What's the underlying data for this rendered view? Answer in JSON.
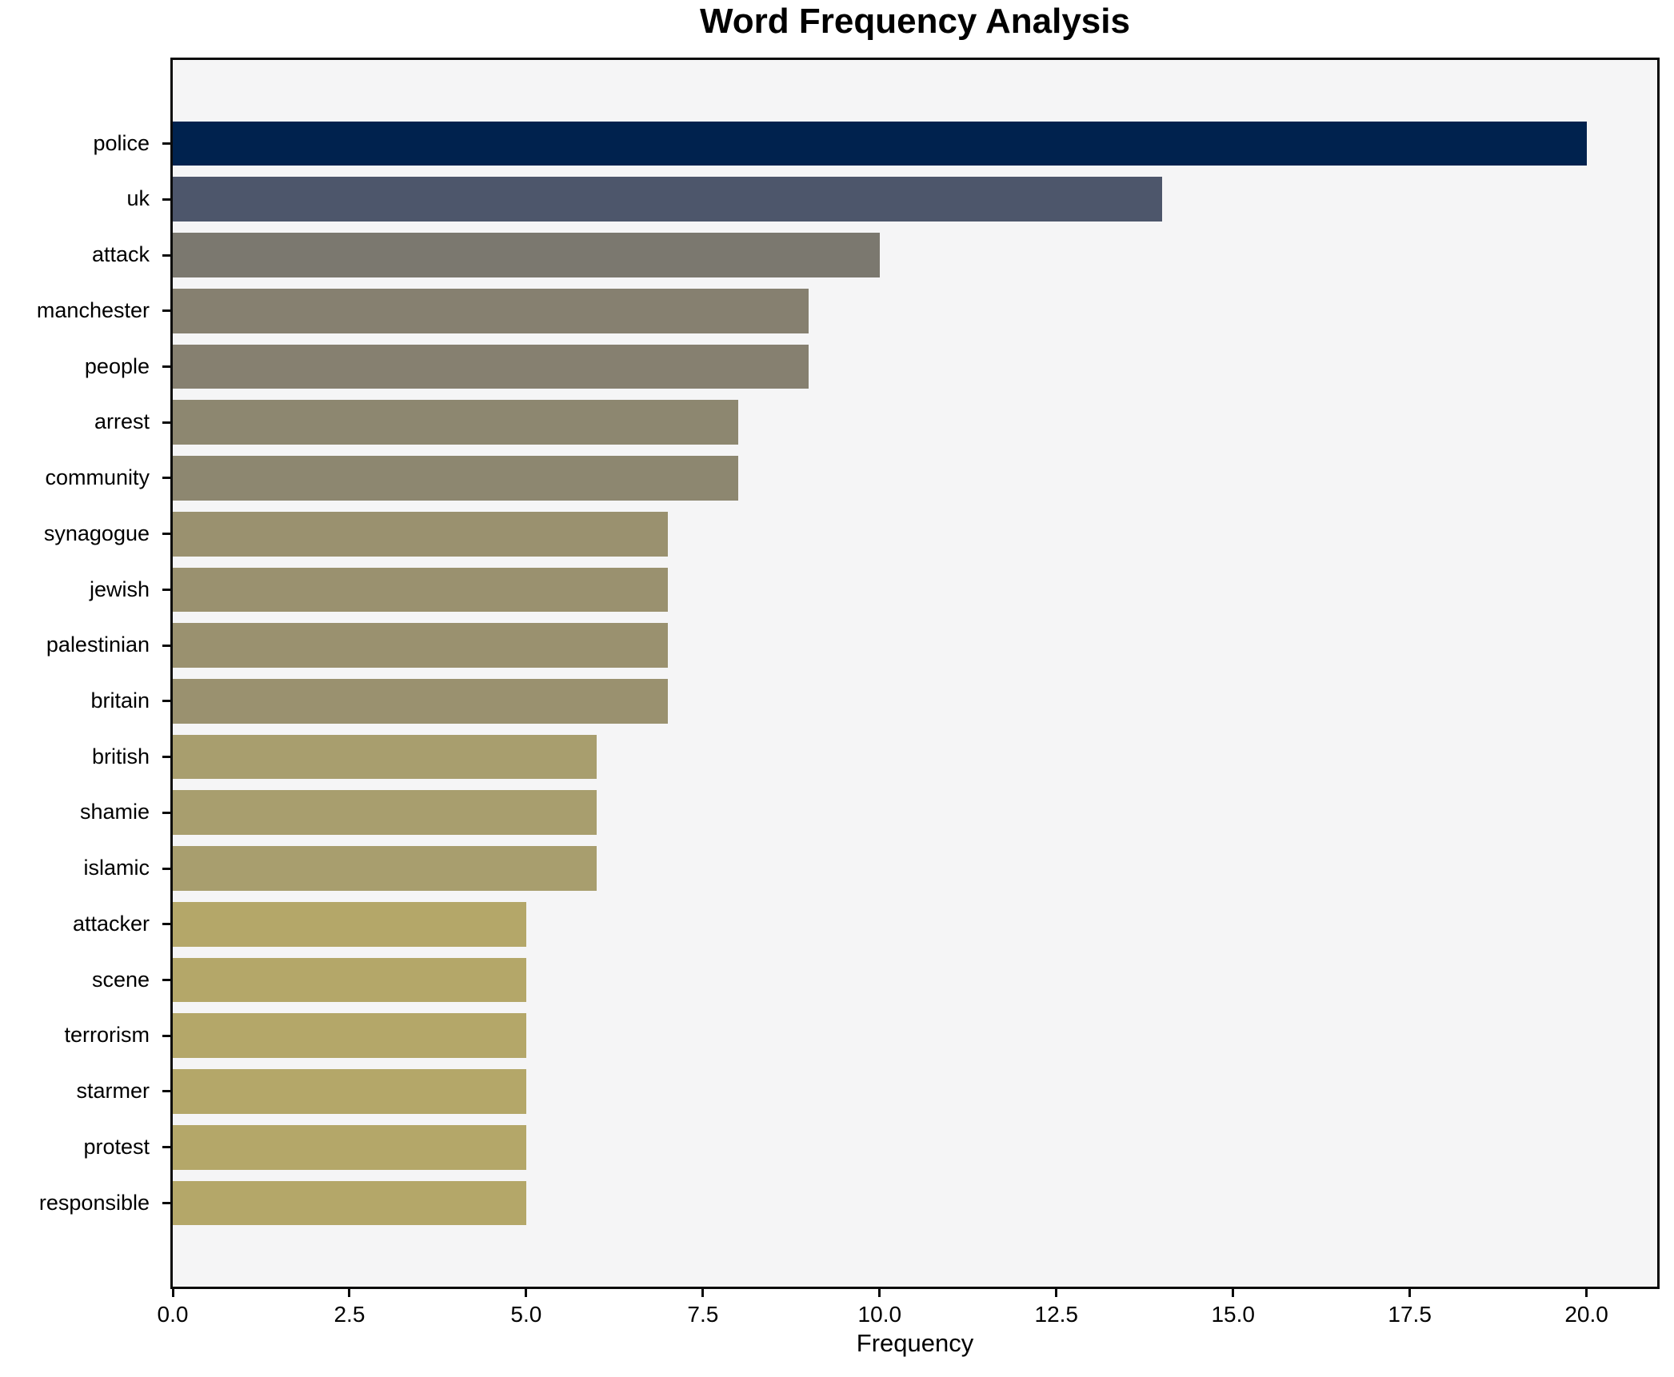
{
  "chart_data": {
    "type": "bar",
    "orientation": "horizontal",
    "title": "Word Frequency Analysis",
    "xlabel": "Frequency",
    "ylabel": "",
    "categories": [
      "police",
      "uk",
      "attack",
      "manchester",
      "people",
      "arrest",
      "community",
      "synagogue",
      "jewish",
      "palestinian",
      "britain",
      "british",
      "shamie",
      "islamic",
      "attacker",
      "scene",
      "terrorism",
      "starmer",
      "protest",
      "responsible"
    ],
    "values": [
      20,
      14,
      10,
      9,
      9,
      8,
      8,
      7,
      7,
      7,
      7,
      6,
      6,
      6,
      5,
      5,
      5,
      5,
      5,
      5
    ],
    "bar_colors": [
      "#00224e",
      "#4d566b",
      "#7b786f",
      "#868070",
      "#868070",
      "#8d8770",
      "#8d8770",
      "#9a916f",
      "#9a916f",
      "#9a916f",
      "#9a916f",
      "#a89e6e",
      "#a89e6e",
      "#a89e6e",
      "#b4a769",
      "#b4a769",
      "#b4a769",
      "#b4a769",
      "#b4a769",
      "#b4a769"
    ],
    "x_ticks": [
      {
        "label": "0.0",
        "value": 0
      },
      {
        "label": "2.5",
        "value": 2.5
      },
      {
        "label": "5.0",
        "value": 5
      },
      {
        "label": "7.5",
        "value": 7.5
      },
      {
        "label": "10.0",
        "value": 10
      },
      {
        "label": "12.5",
        "value": 12.5
      },
      {
        "label": "15.0",
        "value": 15
      },
      {
        "label": "17.5",
        "value": 17.5
      },
      {
        "label": "20.0",
        "value": 20
      }
    ],
    "xlim": [
      0,
      21
    ],
    "grid": false,
    "legend": null,
    "colors": {
      "plot_background": "#f5f5f6",
      "figure_background": "#ffffff",
      "spine": "#0a0a0a",
      "text": "#000000"
    }
  }
}
